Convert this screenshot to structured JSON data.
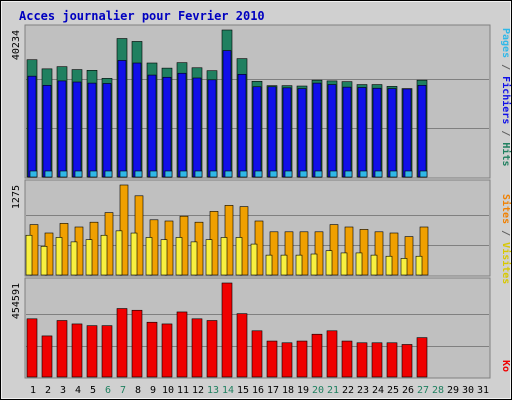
{
  "chart_data": {
    "type": "bar",
    "title": "Acces journalier pour Fevrier 2010",
    "days": [
      "1",
      "2",
      "3",
      "4",
      "5",
      "6",
      "7",
      "8",
      "9",
      "10",
      "11",
      "12",
      "13",
      "14",
      "15",
      "16",
      "17",
      "18",
      "19",
      "20",
      "21",
      "22",
      "23",
      "24",
      "25",
      "26",
      "27",
      "28",
      "29",
      "30",
      "31"
    ],
    "weekend_days": [
      6,
      7,
      13,
      14,
      20,
      21,
      27,
      28
    ],
    "max_labels": {
      "hits": "40234",
      "visits": "1275",
      "kb": "454591"
    },
    "panel_hits": {
      "ymax": 40234,
      "series": [
        {
          "name": "Hits",
          "color": "#208060",
          "values": [
            32100,
            29600,
            30200,
            29400,
            29200,
            27000,
            37900,
            37100,
            31200,
            29800,
            31300,
            29900,
            29100,
            40234,
            32400,
            26200,
            25000,
            25000,
            24900,
            26500,
            26300,
            26100,
            25300,
            25300,
            24800,
            24200,
            26500,
            0,
            0,
            0,
            0
          ]
        },
        {
          "name": "Fichiers",
          "color": "#1010e8",
          "values": [
            27600,
            25100,
            26300,
            26000,
            25700,
            25600,
            31900,
            31200,
            27900,
            27300,
            28400,
            27100,
            26600,
            34600,
            28100,
            24700,
            24700,
            24400,
            24200,
            25700,
            25300,
            24600,
            24500,
            24300,
            24200,
            24100,
            25100,
            0,
            0,
            0,
            0
          ]
        },
        {
          "name": "Pages",
          "color": "#30b8e8",
          "values": [
            900,
            900,
            900,
            900,
            800,
            900,
            1000,
            1000,
            900,
            900,
            1500,
            900,
            900,
            1000,
            900,
            800,
            700,
            800,
            700,
            800,
            900,
            800,
            800,
            700,
            700,
            700,
            700,
            0,
            0,
            0,
            0
          ]
        }
      ]
    },
    "panel_visits": {
      "ymax": 1275,
      "series": [
        {
          "name": "Visites",
          "color": "#f0a000",
          "values": [
            1110,
            1075,
            1115,
            1100,
            1120,
            1160,
            1275,
            1230,
            1130,
            1125,
            1145,
            1120,
            1165,
            1190,
            1185,
            1125,
            1080,
            1080,
            1080,
            1080,
            1110,
            1100,
            1090,
            1080,
            1075,
            1060,
            1100,
            0,
            0,
            0,
            0
          ]
        },
        {
          "name": "Sites",
          "color": "#f8f040",
          "values": [
            1080,
            1030,
            1070,
            1050,
            1060,
            1080,
            1100,
            1090,
            1070,
            1060,
            1070,
            1050,
            1060,
            1070,
            1070,
            1040,
            990,
            990,
            990,
            995,
            1010,
            1000,
            1000,
            990,
            985,
            975,
            985,
            0,
            0,
            0,
            0
          ]
        }
      ]
    },
    "panel_kb": {
      "ymax": 454591,
      "series": [
        {
          "name": "Ko",
          "color": "#f00000",
          "values": [
            350000,
            300000,
            345000,
            335000,
            330000,
            330000,
            380000,
            375000,
            340000,
            335000,
            370000,
            350000,
            345000,
            454591,
            365000,
            315000,
            285000,
            280000,
            285000,
            305000,
            315000,
            285000,
            280000,
            280000,
            280000,
            275000,
            295000,
            0,
            0,
            0,
            0
          ]
        }
      ]
    },
    "right_legends": {
      "top": [
        {
          "text": "Pages",
          "color": "#30b8e8"
        },
        {
          "text": " / ",
          "color": "#606060"
        },
        {
          "text": "Fichiers",
          "color": "#1010e8"
        },
        {
          "text": " / ",
          "color": "#606060"
        },
        {
          "text": "Hits",
          "color": "#208060"
        }
      ],
      "middle": [
        {
          "text": "Sites",
          "color": "#f08000"
        },
        {
          "text": " / ",
          "color": "#606060"
        },
        {
          "text": "Visites",
          "color": "#d8c800"
        }
      ],
      "bottom": [
        {
          "text": "Ko",
          "color": "#f00000"
        }
      ]
    },
    "colors": {
      "title": "#0000c0",
      "panel_bg": "#c0c0c0",
      "grid": "#808080",
      "weekday_label": "#000000",
      "weekend_label": "#208060"
    }
  }
}
